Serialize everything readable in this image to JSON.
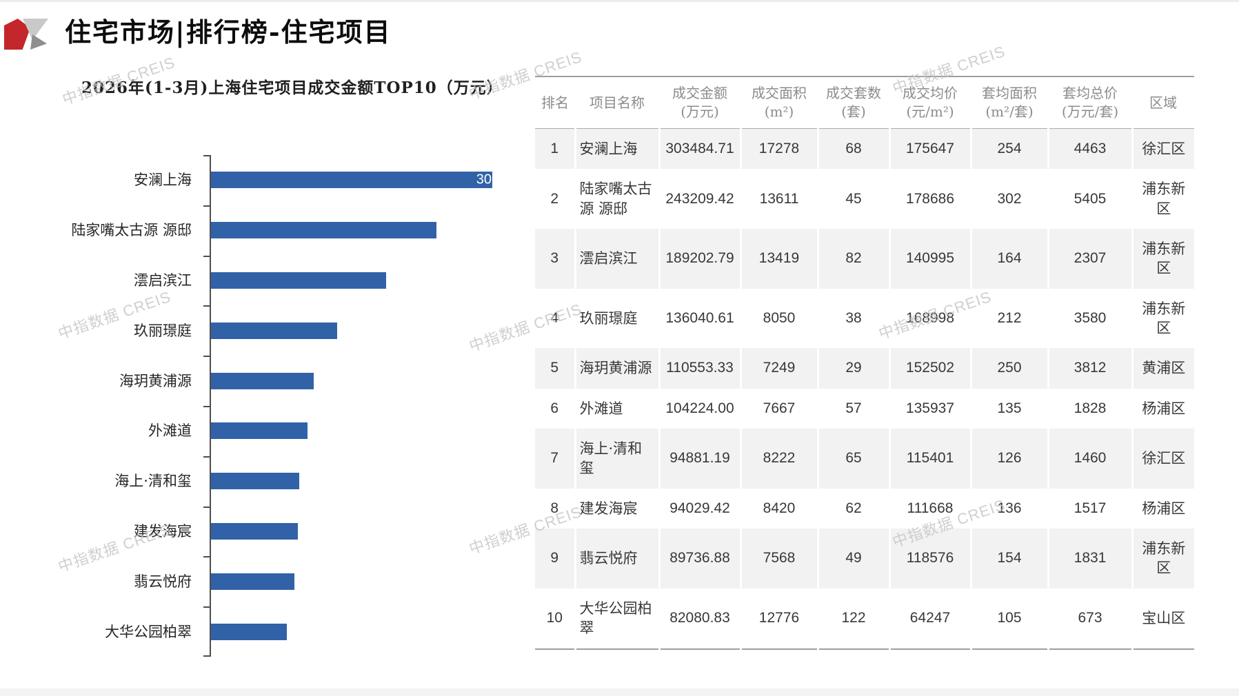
{
  "page": {
    "title": "住宅市场|排行榜-住宅项目",
    "watermark": "中指数据 CREIS"
  },
  "chart_data": {
    "type": "bar",
    "orientation": "horizontal",
    "title": "2026年(1-3月)上海住宅项目成交金额TOP10（万元）",
    "categories": [
      "安澜上海",
      "陆家嘴太古源 源邸",
      "澐启滨江",
      "玖丽璟庭",
      "海玥黄浦源",
      "外滩道",
      "海上·清和玺",
      "建发海宸",
      "翡云悦府",
      "大华公园柏翠"
    ],
    "values": [
      303484.71,
      243209.42,
      189202.79,
      136040.61,
      110553.33,
      104224.0,
      94881.19,
      94029.42,
      89736.88,
      82080.83
    ],
    "xlim": [
      0,
      303484.71
    ],
    "grid": false,
    "legend": false,
    "bar_color": "#3162A7",
    "axis_color": "#4d4d4d",
    "first_bar_visible_label": "30"
  },
  "table": {
    "columns": [
      "排名",
      "项目名称",
      "成交金额\n(万元)",
      "成交面积\n(m²)",
      "成交套数\n(套)",
      "成交均价\n(元/m²)",
      "套均面积\n(m²/套)",
      "套均总价\n(万元/套)",
      "区域"
    ],
    "col_keys": [
      "rank",
      "project-name",
      "sales-amount",
      "sales-area",
      "units-sold",
      "avg-price",
      "avg-area-per-unit",
      "avg-total-price",
      "district"
    ],
    "rows": [
      [
        "1",
        "安澜上海",
        "303484.71",
        "17278",
        "68",
        "175647",
        "254",
        "4463",
        "徐汇区"
      ],
      [
        "2",
        "陆家嘴太古源 源邸",
        "243209.42",
        "13611",
        "45",
        "178686",
        "302",
        "5405",
        "浦东新区"
      ],
      [
        "3",
        "澐启滨江",
        "189202.79",
        "13419",
        "82",
        "140995",
        "164",
        "2307",
        "浦东新区"
      ],
      [
        "4",
        "玖丽璟庭",
        "136040.61",
        "8050",
        "38",
        "168998",
        "212",
        "3580",
        "浦东新区"
      ],
      [
        "5",
        "海玥黄浦源",
        "110553.33",
        "7249",
        "29",
        "152502",
        "250",
        "3812",
        "黄浦区"
      ],
      [
        "6",
        "外滩道",
        "104224.00",
        "7667",
        "57",
        "135937",
        "135",
        "1828",
        "杨浦区"
      ],
      [
        "7",
        "海上·清和玺",
        "94881.19",
        "8222",
        "65",
        "115401",
        "126",
        "1460",
        "徐汇区"
      ],
      [
        "8",
        "建发海宸",
        "94029.42",
        "8420",
        "62",
        "111668",
        "136",
        "1517",
        "杨浦区"
      ],
      [
        "9",
        "翡云悦府",
        "89736.88",
        "7568",
        "49",
        "118576",
        "154",
        "1831",
        "浦东新区"
      ],
      [
        "10",
        "大华公园柏翠",
        "82080.83",
        "12776",
        "122",
        "64247",
        "105",
        "673",
        "宝山区"
      ]
    ]
  }
}
